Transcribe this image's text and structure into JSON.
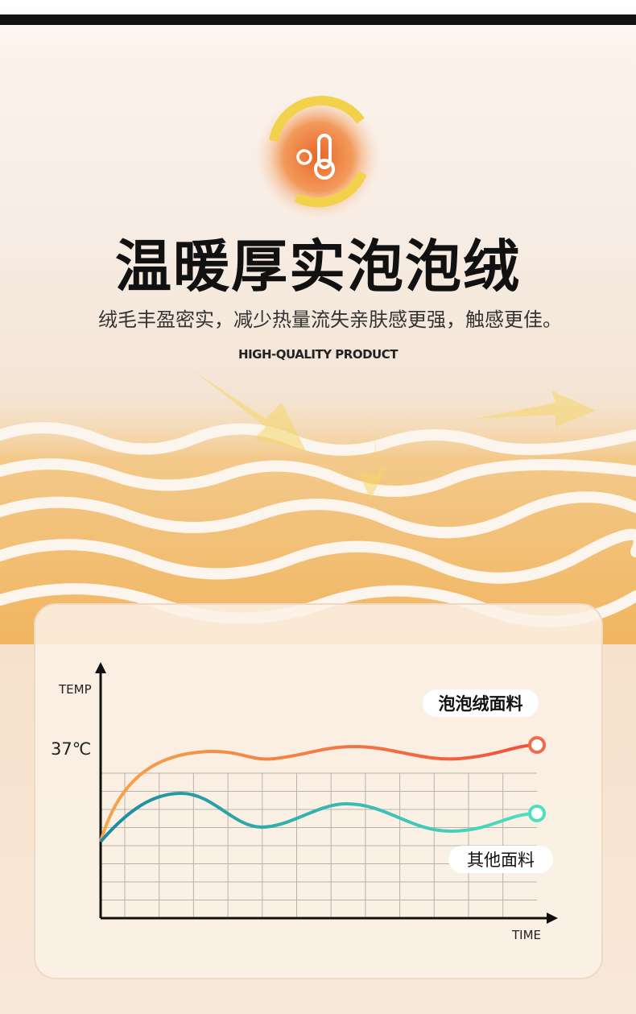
{
  "header": {
    "title": "温暖厚实泡泡绒",
    "subtitle": "绒毛丰盈密实，减少热量流失亲肤感更强，触感更佳。",
    "tagline": "HIGH-QUALITY PRODUCT"
  },
  "diagram": {
    "y_axis_label": "TEMP",
    "x_axis_label": "TIME",
    "reference_label": "37℃",
    "curves": [
      {
        "label": "泡泡绒面料"
      },
      {
        "label": "其他面料"
      }
    ]
  }
}
